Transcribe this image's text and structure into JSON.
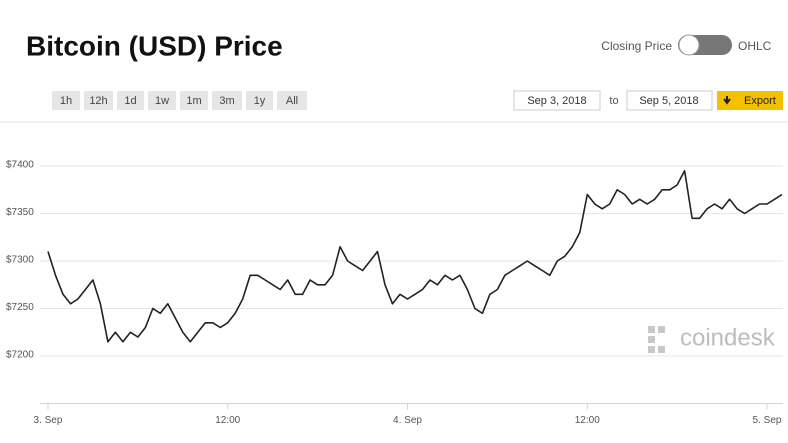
{
  "toggle": {
    "left": "Closing Price",
    "right": "OHLC"
  },
  "range_buttons": [
    "1h",
    "12h",
    "1d",
    "1w",
    "1m",
    "3m",
    "1y",
    "All"
  ],
  "date_range": {
    "from": "Sep 3, 2018",
    "separator": "to",
    "to": "Sep 5, 2018"
  },
  "export": "Export",
  "watermark": "coindesk",
  "chart_data": {
    "type": "line",
    "title": "Bitcoin (USD) Price",
    "x": [
      "2018-09-03T00:00",
      "2018-09-03T00:30",
      "2018-09-03T01:00",
      "2018-09-03T01:30",
      "2018-09-03T02:00",
      "2018-09-03T02:30",
      "2018-09-03T03:00",
      "2018-09-03T03:30",
      "2018-09-03T04:00",
      "2018-09-03T04:30",
      "2018-09-03T05:00",
      "2018-09-03T05:30",
      "2018-09-03T06:00",
      "2018-09-03T06:30",
      "2018-09-03T07:00",
      "2018-09-03T07:30",
      "2018-09-03T08:00",
      "2018-09-03T08:30",
      "2018-09-03T09:00",
      "2018-09-03T09:30",
      "2018-09-03T10:00",
      "2018-09-03T10:30",
      "2018-09-03T11:00",
      "2018-09-03T11:30",
      "2018-09-03T12:00",
      "2018-09-03T12:30",
      "2018-09-03T13:00",
      "2018-09-03T13:30",
      "2018-09-03T14:00",
      "2018-09-03T14:30",
      "2018-09-03T15:00",
      "2018-09-03T15:30",
      "2018-09-03T16:00",
      "2018-09-03T16:30",
      "2018-09-03T17:00",
      "2018-09-03T17:30",
      "2018-09-03T18:00",
      "2018-09-03T18:30",
      "2018-09-03T19:00",
      "2018-09-03T19:30",
      "2018-09-03T20:00",
      "2018-09-03T20:30",
      "2018-09-03T21:00",
      "2018-09-03T21:30",
      "2018-09-03T22:00",
      "2018-09-03T22:30",
      "2018-09-03T23:00",
      "2018-09-03T23:30",
      "2018-09-04T00:00",
      "2018-09-04T00:30",
      "2018-09-04T01:00",
      "2018-09-04T01:30",
      "2018-09-04T02:00",
      "2018-09-04T02:30",
      "2018-09-04T03:00",
      "2018-09-04T03:30",
      "2018-09-04T04:00",
      "2018-09-04T04:30",
      "2018-09-04T05:00",
      "2018-09-04T05:30",
      "2018-09-04T06:00",
      "2018-09-04T06:30",
      "2018-09-04T07:00",
      "2018-09-04T07:30",
      "2018-09-04T08:00",
      "2018-09-04T08:30",
      "2018-09-04T09:00",
      "2018-09-04T09:30",
      "2018-09-04T10:00",
      "2018-09-04T10:30",
      "2018-09-04T11:00",
      "2018-09-04T11:30",
      "2018-09-04T12:00",
      "2018-09-04T12:30",
      "2018-09-04T13:00",
      "2018-09-04T13:30",
      "2018-09-04T14:00",
      "2018-09-04T14:30",
      "2018-09-04T15:00",
      "2018-09-04T15:30",
      "2018-09-04T16:00",
      "2018-09-04T16:30",
      "2018-09-04T17:00",
      "2018-09-04T17:30",
      "2018-09-04T18:00",
      "2018-09-04T18:30",
      "2018-09-04T19:00",
      "2018-09-04T19:30",
      "2018-09-04T20:00",
      "2018-09-04T20:30",
      "2018-09-04T21:00",
      "2018-09-04T21:30",
      "2018-09-04T22:00",
      "2018-09-04T22:30",
      "2018-09-04T23:00",
      "2018-09-04T23:30",
      "2018-09-05T00:00",
      "2018-09-05T00:30",
      "2018-09-05T01:00"
    ],
    "series": [
      {
        "name": "Closing Price",
        "color": "#222222",
        "values": [
          7310,
          7285,
          7265,
          7255,
          7260,
          7270,
          7280,
          7255,
          7215,
          7225,
          7215,
          7225,
          7220,
          7230,
          7250,
          7245,
          7255,
          7240,
          7225,
          7215,
          7225,
          7235,
          7235,
          7230,
          7235,
          7245,
          7260,
          7285,
          7285,
          7280,
          7275,
          7270,
          7280,
          7265,
          7265,
          7280,
          7275,
          7275,
          7285,
          7315,
          7300,
          7295,
          7290,
          7300,
          7310,
          7275,
          7255,
          7265,
          7260,
          7265,
          7270,
          7280,
          7275,
          7285,
          7280,
          7285,
          7270,
          7250,
          7245,
          7265,
          7270,
          7285,
          7290,
          7295,
          7300,
          7295,
          7290,
          7285,
          7300,
          7305,
          7315,
          7330,
          7370,
          7360,
          7355,
          7360,
          7375,
          7370,
          7360,
          7365,
          7360,
          7365,
          7375,
          7375,
          7380,
          7395,
          7345,
          7345,
          7355,
          7360,
          7355,
          7365,
          7355,
          7350,
          7355,
          7360,
          7360,
          7365,
          7370
        ]
      }
    ],
    "xlim": [
      "2018-09-02T23:28",
      "2018-09-05T01:04"
    ],
    "xticks": [
      {
        "value": "2018-09-03T00:00",
        "label": "3. Sep"
      },
      {
        "value": "2018-09-03T12:00",
        "label": "12:00"
      },
      {
        "value": "2018-09-04T00:00",
        "label": "4. Sep"
      },
      {
        "value": "2018-09-04T12:00",
        "label": "12:00"
      },
      {
        "value": "2018-09-05T00:00",
        "label": "5. Sep"
      }
    ],
    "ylim": [
      7150,
      7450
    ],
    "yticks": [
      {
        "value": 7200,
        "label": "$7200"
      },
      {
        "value": 7250,
        "label": "$7250"
      },
      {
        "value": 7300,
        "label": "$7300"
      },
      {
        "value": 7350,
        "label": "$7350"
      },
      {
        "value": 7400,
        "label": "$7400"
      }
    ],
    "grid": true
  }
}
